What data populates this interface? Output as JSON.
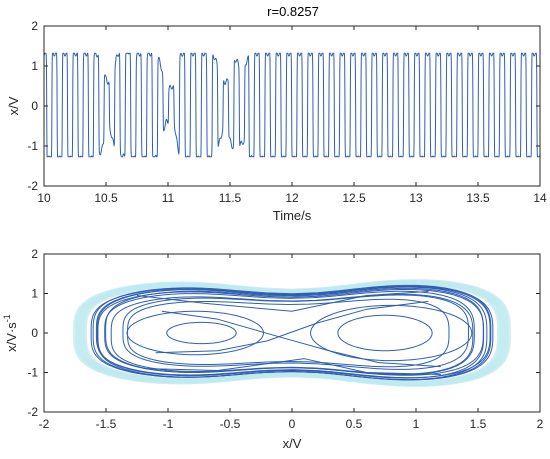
{
  "colors": {
    "line": "#2f5fb3",
    "halo": "#bfeaf0",
    "axis": "#262626",
    "background": "#ffffff"
  },
  "chart_data": [
    {
      "type": "line",
      "title": "r=0.8257",
      "xlabel": "Time/s",
      "ylabel": "x/V",
      "xlim": [
        10,
        14
      ],
      "ylim": [
        -2,
        2
      ],
      "xticks": [
        "10",
        "10.5",
        "11",
        "11.5",
        "12",
        "12.5",
        "13",
        "13.5",
        "14"
      ],
      "yticks": [
        "-2",
        "-1",
        "0",
        "1",
        "2"
      ],
      "grid": false,
      "series": [
        {
          "description_of_signal": "square-like oscillation between about -1.25 and 1.3, period about 0.086 s; irregular low-amplitude stretches near 10.5 s, 11.0 s and 11.45 s, then steady oscillation from 11.65 s to 14 s",
          "x_range": [
            10,
            14
          ],
          "amplitude": 1.3,
          "period": 0.086
        }
      ]
    },
    {
      "type": "line",
      "title": "",
      "xlabel": "x/V",
      "ylabel": "x/V·s",
      "ylabel_superscript": "-1",
      "xlim": [
        -2,
        2
      ],
      "ylim": [
        -2,
        2
      ],
      "xticks": [
        "-2",
        "-1.5",
        "-1",
        "-0.5",
        "0",
        "0.5",
        "1",
        "1.5",
        "2"
      ],
      "yticks": [
        "-2",
        "-1",
        "0",
        "1",
        "2"
      ],
      "grid": false,
      "series": [
        {
          "description_of_signal": "phase portrait: double-scroll attractor with outer peanut-shaped loops spanning x from -1.7 to 1.7 and y from -1.3 to 1.35, inner loops around (-0.75, 0) and (0.75, 0)",
          "x_range": [
            -1.7,
            1.7
          ],
          "y_range": [
            -1.3,
            1.35
          ]
        }
      ]
    }
  ]
}
